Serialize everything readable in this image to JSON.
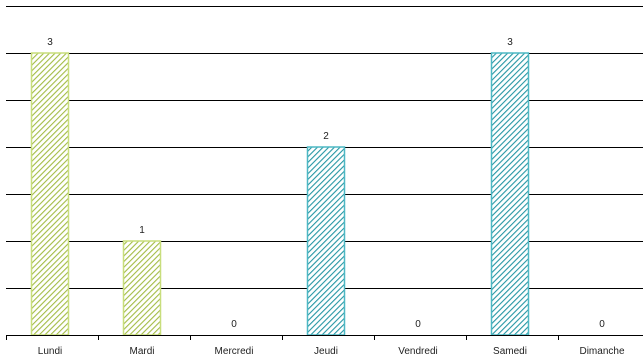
{
  "chart_data": {
    "type": "bar",
    "categories": [
      "Lundi",
      "Mardi",
      "Mercredi",
      "Jeudi",
      "Vendredi",
      "Samedi",
      "Dimanche"
    ],
    "values": [
      3,
      1,
      0,
      2,
      0,
      3,
      0
    ],
    "data_labels": [
      "3",
      "1",
      "0",
      "2",
      "0",
      "3",
      "0"
    ],
    "ylim": [
      0,
      3.5
    ],
    "grid_step": 0.5,
    "grid": true,
    "legend": "none",
    "title": "",
    "xlabel": "",
    "ylabel": "",
    "bar_colors": [
      "#c8de7c",
      "#c8de7c",
      "#c8de7c",
      "#4db8c4",
      "#4db8c4",
      "#4db8c4",
      "#4db8c4"
    ],
    "bar_hatch_colors": [
      "#a3bc45",
      "#a3bc45",
      "#a3bc45",
      "#2596a4",
      "#2596a4",
      "#2596a4",
      "#2596a4"
    ]
  }
}
